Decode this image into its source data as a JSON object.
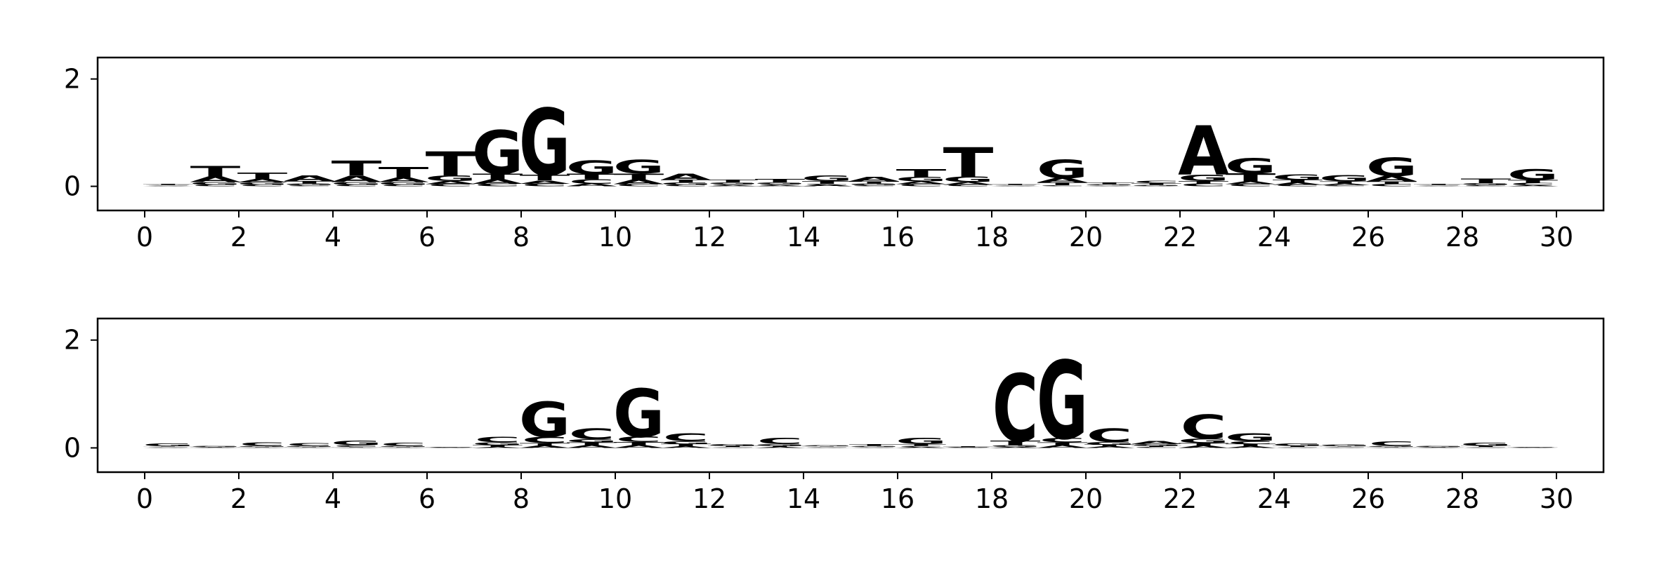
{
  "colors": {
    "A": "#008000",
    "C": "#0000ff",
    "G": "#ffa500",
    "T": "#ff0000",
    "axis": "#000000",
    "background": "#ffffff"
  },
  "chart_data": [
    {
      "type": "sequence-logo",
      "xlim": [
        -1,
        31
      ],
      "ylim": [
        -0.45,
        2.4
      ],
      "xticks": [
        "0",
        "2",
        "4",
        "6",
        "8",
        "10",
        "12",
        "14",
        "16",
        "18",
        "20",
        "22",
        "24",
        "26",
        "28",
        "30"
      ],
      "yticks": [
        "0",
        "2"
      ],
      "positions": [
        [
          [
            "A",
            0.01
          ],
          [
            "C",
            0.01
          ],
          [
            "G",
            0.01
          ],
          [
            "T",
            0.02
          ]
        ],
        [
          [
            "C",
            0.03
          ],
          [
            "G",
            0.05
          ],
          [
            "A",
            0.1
          ],
          [
            "T",
            0.2
          ]
        ],
        [
          [
            "C",
            0.03
          ],
          [
            "G",
            0.04
          ],
          [
            "A",
            0.07
          ],
          [
            "T",
            0.12
          ]
        ],
        [
          [
            "C",
            0.02
          ],
          [
            "G",
            0.03
          ],
          [
            "T",
            0.05
          ],
          [
            "A",
            0.1
          ]
        ],
        [
          [
            "C",
            0.03
          ],
          [
            "G",
            0.05
          ],
          [
            "A",
            0.12
          ],
          [
            "T",
            0.28
          ]
        ],
        [
          [
            "C",
            0.03
          ],
          [
            "G",
            0.05
          ],
          [
            "A",
            0.08
          ],
          [
            "T",
            0.2
          ]
        ],
        [
          [
            "C",
            0.04
          ],
          [
            "A",
            0.06
          ],
          [
            "G",
            0.1
          ],
          [
            "T",
            0.45
          ]
        ],
        [
          [
            "C",
            0.05
          ],
          [
            "A",
            0.08
          ],
          [
            "T",
            0.1
          ],
          [
            "G",
            0.82
          ]
        ],
        [
          [
            "C",
            0.05
          ],
          [
            "A",
            0.06
          ],
          [
            "T",
            0.1
          ],
          [
            "G",
            1.25
          ]
        ],
        [
          [
            "A",
            0.05
          ],
          [
            "C",
            0.08
          ],
          [
            "T",
            0.1
          ],
          [
            "G",
            0.25
          ]
        ],
        [
          [
            "C",
            0.04
          ],
          [
            "A",
            0.08
          ],
          [
            "T",
            0.12
          ],
          [
            "G",
            0.25
          ]
        ],
        [
          [
            "C",
            0.03
          ],
          [
            "G",
            0.04
          ],
          [
            "T",
            0.05
          ],
          [
            "A",
            0.12
          ]
        ],
        [
          [
            "A",
            0.02
          ],
          [
            "C",
            0.02
          ],
          [
            "G",
            0.03
          ],
          [
            "T",
            0.05
          ]
        ],
        [
          [
            "A",
            0.02
          ],
          [
            "C",
            0.02
          ],
          [
            "G",
            0.03
          ],
          [
            "T",
            0.07
          ]
        ],
        [
          [
            "A",
            0.03
          ],
          [
            "C",
            0.02
          ],
          [
            "T",
            0.05
          ],
          [
            "G",
            0.1
          ]
        ],
        [
          [
            "C",
            0.02
          ],
          [
            "G",
            0.03
          ],
          [
            "T",
            0.04
          ],
          [
            "A",
            0.08
          ]
        ],
        [
          [
            "C",
            0.04
          ],
          [
            "A",
            0.05
          ],
          [
            "G",
            0.08
          ],
          [
            "T",
            0.15
          ]
        ],
        [
          [
            "C",
            0.03
          ],
          [
            "A",
            0.05
          ],
          [
            "G",
            0.1
          ],
          [
            "T",
            0.55
          ]
        ],
        [
          [
            "A",
            0.01
          ],
          [
            "C",
            0.01
          ],
          [
            "G",
            0.01
          ],
          [
            "T",
            0.02
          ]
        ],
        [
          [
            "C",
            0.02
          ],
          [
            "T",
            0.05
          ],
          [
            "A",
            0.08
          ],
          [
            "G",
            0.35
          ]
        ],
        [
          [
            "A",
            0.01
          ],
          [
            "C",
            0.01
          ],
          [
            "G",
            0.02
          ],
          [
            "T",
            0.03
          ]
        ],
        [
          [
            "A",
            0.01
          ],
          [
            "G",
            0.02
          ],
          [
            "T",
            0.03
          ],
          [
            "C",
            0.04
          ]
        ],
        [
          [
            "C",
            0.05
          ],
          [
            "T",
            0.05
          ],
          [
            "G",
            0.12
          ],
          [
            "A",
            0.92
          ]
        ],
        [
          [
            "C",
            0.04
          ],
          [
            "A",
            0.05
          ],
          [
            "T",
            0.15
          ],
          [
            "G",
            0.28
          ]
        ],
        [
          [
            "C",
            0.03
          ],
          [
            "A",
            0.04
          ],
          [
            "T",
            0.05
          ],
          [
            "G",
            0.1
          ]
        ],
        [
          [
            "C",
            0.02
          ],
          [
            "A",
            0.03
          ],
          [
            "T",
            0.04
          ],
          [
            "G",
            0.12
          ]
        ],
        [
          [
            "C",
            0.04
          ],
          [
            "T",
            0.05
          ],
          [
            "A",
            0.1
          ],
          [
            "G",
            0.35
          ]
        ],
        [
          [
            "A",
            0.01
          ],
          [
            "C",
            0.01
          ],
          [
            "G",
            0.01
          ],
          [
            "T",
            0.02
          ]
        ],
        [
          [
            "A",
            0.01
          ],
          [
            "C",
            0.02
          ],
          [
            "G",
            0.03
          ],
          [
            "T",
            0.08
          ]
        ],
        [
          [
            "A",
            0.02
          ],
          [
            "C",
            0.04
          ],
          [
            "T",
            0.06
          ],
          [
            "G",
            0.2
          ]
        ]
      ]
    },
    {
      "type": "sequence-logo",
      "xlim": [
        -1,
        31
      ],
      "ylim": [
        -0.45,
        2.4
      ],
      "xticks": [
        "0",
        "2",
        "4",
        "6",
        "8",
        "10",
        "12",
        "14",
        "16",
        "18",
        "20",
        "22",
        "24",
        "26",
        "28",
        "30"
      ],
      "yticks": [
        "0",
        "2"
      ],
      "positions": [
        [
          [
            "A",
            0.01
          ],
          [
            "C",
            0.01
          ],
          [
            "T",
            0.01
          ],
          [
            "G",
            0.05
          ]
        ],
        [
          [
            "A",
            0.005
          ],
          [
            "C",
            0.005
          ],
          [
            "T",
            0.01
          ],
          [
            "G",
            0.02
          ]
        ],
        [
          [
            "A",
            0.01
          ],
          [
            "T",
            0.01
          ],
          [
            "G",
            0.02
          ],
          [
            "C",
            0.07
          ]
        ],
        [
          [
            "A",
            0.01
          ],
          [
            "T",
            0.01
          ],
          [
            "G",
            0.02
          ],
          [
            "C",
            0.05
          ]
        ],
        [
          [
            "A",
            0.01
          ],
          [
            "T",
            0.01
          ],
          [
            "C",
            0.03
          ],
          [
            "G",
            0.08
          ]
        ],
        [
          [
            "A",
            0.01
          ],
          [
            "T",
            0.01
          ],
          [
            "G",
            0.02
          ],
          [
            "C",
            0.06
          ]
        ],
        [
          [
            "A",
            0.005
          ],
          [
            "C",
            0.005
          ],
          [
            "G",
            0.005
          ],
          [
            "T",
            0.01
          ]
        ],
        [
          [
            "A",
            0.02
          ],
          [
            "T",
            0.03
          ],
          [
            "G",
            0.05
          ],
          [
            "C",
            0.1
          ]
        ],
        [
          [
            "A",
            0.04
          ],
          [
            "T",
            0.05
          ],
          [
            "C",
            0.12
          ],
          [
            "G",
            0.65
          ]
        ],
        [
          [
            "A",
            0.05
          ],
          [
            "T",
            0.05
          ],
          [
            "G",
            0.06
          ],
          [
            "C",
            0.2
          ]
        ],
        [
          [
            "A",
            0.05
          ],
          [
            "T",
            0.06
          ],
          [
            "C",
            0.1
          ],
          [
            "G",
            0.9
          ]
        ],
        [
          [
            "A",
            0.03
          ],
          [
            "T",
            0.04
          ],
          [
            "G",
            0.05
          ],
          [
            "C",
            0.15
          ]
        ],
        [
          [
            "A",
            0.01
          ],
          [
            "C",
            0.01
          ],
          [
            "T",
            0.02
          ],
          [
            "G",
            0.03
          ]
        ],
        [
          [
            "A",
            0.02
          ],
          [
            "T",
            0.02
          ],
          [
            "G",
            0.03
          ],
          [
            "C",
            0.12
          ]
        ],
        [
          [
            "A",
            0.01
          ],
          [
            "C",
            0.01
          ],
          [
            "T",
            0.01
          ],
          [
            "G",
            0.02
          ]
        ],
        [
          [
            "A",
            0.01
          ],
          [
            "C",
            0.01
          ],
          [
            "G",
            0.02
          ],
          [
            "T",
            0.03
          ]
        ],
        [
          [
            "A",
            0.02
          ],
          [
            "C",
            0.02
          ],
          [
            "T",
            0.03
          ],
          [
            "G",
            0.12
          ]
        ],
        [
          [
            "A",
            0.005
          ],
          [
            "C",
            0.005
          ],
          [
            "G",
            0.005
          ],
          [
            "T",
            0.02
          ]
        ],
        [
          [
            "A",
            0.02
          ],
          [
            "G",
            0.03
          ],
          [
            "T",
            0.08
          ],
          [
            "C",
            1.25
          ]
        ],
        [
          [
            "A",
            0.05
          ],
          [
            "T",
            0.05
          ],
          [
            "C",
            0.08
          ],
          [
            "G",
            1.45
          ]
        ],
        [
          [
            "A",
            0.03
          ],
          [
            "T",
            0.03
          ],
          [
            "G",
            0.05
          ],
          [
            "C",
            0.25
          ]
        ],
        [
          [
            "C",
            0.02
          ],
          [
            "T",
            0.02
          ],
          [
            "G",
            0.03
          ],
          [
            "A",
            0.06
          ]
        ],
        [
          [
            "A",
            0.04
          ],
          [
            "T",
            0.05
          ],
          [
            "G",
            0.08
          ],
          [
            "C",
            0.45
          ]
        ],
        [
          [
            "A",
            0.03
          ],
          [
            "T",
            0.04
          ],
          [
            "C",
            0.05
          ],
          [
            "G",
            0.15
          ]
        ],
        [
          [
            "A",
            0.01
          ],
          [
            "C",
            0.01
          ],
          [
            "T",
            0.02
          ],
          [
            "G",
            0.04
          ]
        ],
        [
          [
            "A",
            0.01
          ],
          [
            "C",
            0.01
          ],
          [
            "T",
            0.01
          ],
          [
            "G",
            0.03
          ]
        ],
        [
          [
            "A",
            0.01
          ],
          [
            "T",
            0.01
          ],
          [
            "G",
            0.02
          ],
          [
            "C",
            0.08
          ]
        ],
        [
          [
            "A",
            0.005
          ],
          [
            "C",
            0.005
          ],
          [
            "T",
            0.01
          ],
          [
            "G",
            0.02
          ]
        ],
        [
          [
            "A",
            0.01
          ],
          [
            "C",
            0.01
          ],
          [
            "T",
            0.02
          ],
          [
            "G",
            0.06
          ]
        ],
        [
          [
            "A",
            0.005
          ],
          [
            "C",
            0.005
          ],
          [
            "T",
            0.005
          ],
          [
            "G",
            0.01
          ]
        ]
      ]
    }
  ]
}
